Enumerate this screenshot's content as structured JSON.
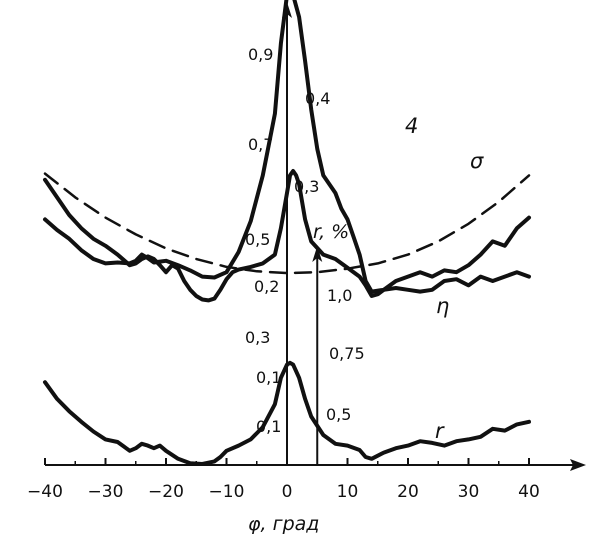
{
  "chart_data": {
    "type": "line",
    "xlabel": "φ, град",
    "x_ticks": [
      -40,
      -30,
      -20,
      -10,
      0,
      10,
      20,
      30,
      40
    ],
    "x_tick_labels": [
      "−40",
      "−30",
      "−20",
      "−10",
      "0",
      "10",
      "20",
      "30",
      "40"
    ],
    "xlim": [
      -40,
      40
    ],
    "grid": false,
    "legend": "none",
    "line_color": "#111111",
    "left_scale_labels": {
      "sigma": [
        "0,9",
        "0,7"
      ],
      "eta": [
        "0,5",
        "0,3"
      ],
      "r": [
        "0,1"
      ]
    },
    "right_scale_labels": {
      "sigma": [
        "0,4",
        "0,3"
      ],
      "eta": [
        "0,2",
        "0,1"
      ]
    },
    "r_axis": {
      "label": "r, %",
      "x_position": 5,
      "tick_labels": [
        "1,0",
        "0,75",
        "0,5"
      ]
    },
    "series": [
      {
        "name": "σ",
        "style": "solid",
        "x": [
          -40,
          -38,
          -36,
          -34,
          -32,
          -30,
          -28,
          -26,
          -25,
          -24,
          -23,
          -22,
          -21,
          -20,
          -19,
          -18,
          -17,
          -16,
          -15,
          -14,
          -13,
          -12,
          -11,
          -10,
          -9,
          -8,
          -6,
          -4,
          -2,
          -1,
          0,
          0.5,
          1,
          1.5,
          2,
          3,
          4,
          6,
          8,
          10,
          12,
          13,
          14,
          15,
          16,
          18,
          20,
          22,
          24,
          26,
          28,
          30,
          32,
          34,
          36,
          38,
          40
        ],
        "y": [
          0.415,
          0.395,
          0.375,
          0.36,
          0.348,
          0.34,
          0.33,
          0.318,
          0.32,
          0.325,
          0.328,
          0.325,
          0.318,
          0.31,
          0.318,
          0.314,
          0.3,
          0.29,
          0.283,
          0.279,
          0.278,
          0.28,
          0.29,
          0.302,
          0.31,
          0.313,
          0.316,
          0.32,
          0.33,
          0.36,
          0.4,
          0.42,
          0.425,
          0.42,
          0.41,
          0.37,
          0.345,
          0.33,
          0.325,
          0.315,
          0.305,
          0.295,
          0.283,
          0.285,
          0.29,
          0.3,
          0.305,
          0.31,
          0.305,
          0.312,
          0.31,
          0.318,
          0.33,
          0.345,
          0.34,
          0.36,
          0.372
        ]
      },
      {
        "name": "4",
        "style": "dashed",
        "x": [
          -40,
          -35,
          -30,
          -25,
          -20,
          -15,
          -10,
          -5,
          0,
          5,
          10,
          15,
          20,
          25,
          30,
          35,
          40
        ],
        "y": [
          0.422,
          0.395,
          0.372,
          0.353,
          0.337,
          0.325,
          0.316,
          0.311,
          0.309,
          0.31,
          0.314,
          0.32,
          0.33,
          0.345,
          0.365,
          0.39,
          0.42
        ]
      },
      {
        "name": "η",
        "style": "solid",
        "x": [
          -40,
          -38,
          -36,
          -34,
          -32,
          -30,
          -28,
          -27,
          -26,
          -25,
          -24,
          -23,
          -22,
          -21,
          -20,
          -18,
          -16,
          -14,
          -12,
          -11,
          -10,
          -8,
          -6,
          -4,
          -2,
          -1,
          0,
          0.5,
          1,
          2,
          3,
          4,
          6,
          8,
          10,
          12,
          13,
          14,
          16,
          18,
          20,
          22,
          24,
          26,
          28,
          30,
          32,
          34,
          36,
          38,
          40
        ],
        "y": [
          0.185,
          0.166,
          0.152,
          0.14,
          0.129,
          0.12,
          0.117,
          0.112,
          0.107,
          0.11,
          0.115,
          0.113,
          0.11,
          0.113,
          0.107,
          0.098,
          0.093,
          0.092,
          0.095,
          0.1,
          0.107,
          0.113,
          0.12,
          0.134,
          0.16,
          0.19,
          0.205,
          0.207,
          0.205,
          0.19,
          0.166,
          0.146,
          0.125,
          0.115,
          0.113,
          0.108,
          0.1,
          0.098,
          0.105,
          0.11,
          0.113,
          0.118,
          0.116,
          0.113,
          0.118,
          0.12,
          0.123,
          0.132,
          0.13,
          0.137,
          0.14
        ]
      },
      {
        "name": "r",
        "style": "solid",
        "x": [
          -40,
          -38,
          -36,
          -34,
          -32,
          -30,
          -28,
          -26,
          -25,
          -24,
          -23,
          -22,
          -21,
          -20,
          -18,
          -16,
          -14,
          -12,
          -10,
          -8,
          -6,
          -4,
          -2,
          -1,
          0,
          0.5,
          1,
          2,
          3,
          4,
          5,
          6,
          8,
          9,
          10,
          11,
          12,
          13,
          14,
          16,
          18,
          20,
          22,
          24,
          26,
          28,
          30,
          32,
          34,
          36,
          38,
          40
        ],
        "y": [
          0.37,
          0.358,
          0.348,
          0.335,
          0.325,
          0.32,
          0.321,
          0.32,
          0.323,
          0.33,
          0.326,
          0.321,
          0.322,
          0.323,
          0.318,
          0.312,
          0.305,
          0.304,
          0.31,
          0.333,
          0.368,
          0.42,
          0.49,
          0.57,
          0.625,
          0.632,
          0.625,
          0.6,
          0.55,
          0.495,
          0.45,
          0.42,
          0.4,
          0.382,
          0.37,
          0.35,
          0.33,
          0.3,
          0.288,
          0.29,
          0.292,
          0.29,
          0.288,
          0.29,
          0.3,
          0.302,
          0.295,
          0.305,
          0.3,
          0.305,
          0.31,
          0.305
        ]
      }
    ]
  }
}
